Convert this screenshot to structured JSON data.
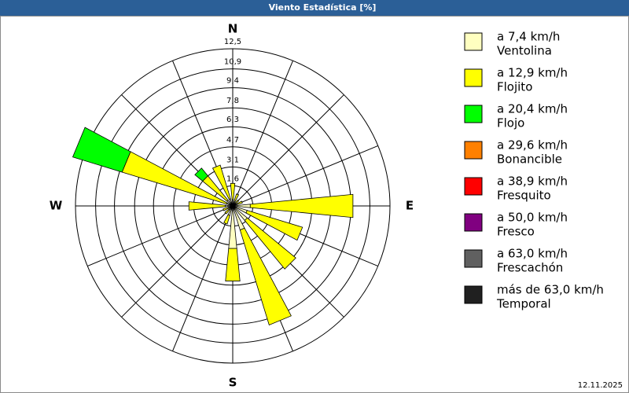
{
  "chart_data": {
    "type": "windrose",
    "title": "Viento Estadística [%]",
    "date": "12.11.2025",
    "categories": [
      "N",
      null,
      null,
      null,
      "E",
      null,
      null,
      null,
      "S",
      null,
      null,
      null,
      "W",
      null,
      null,
      null
    ],
    "rlim": [
      0,
      12.5
    ],
    "rticks": [
      {
        "value": 1.6,
        "label": "1,6"
      },
      {
        "value": 3.1,
        "label": "3,1"
      },
      {
        "value": 4.7,
        "label": "4,7"
      },
      {
        "value": 6.3,
        "label": "6,3"
      },
      {
        "value": 7.8,
        "label": "7,8"
      },
      {
        "value": 9.4,
        "label": "9,4"
      },
      {
        "value": 10.9,
        "label": "10,9"
      },
      {
        "value": 12.5,
        "label": "12,5"
      }
    ],
    "series": [
      {
        "name": "a 7,4 km/h",
        "description": "Ventolina",
        "color": "#ffffc0",
        "values": [
          0.5,
          0.4,
          0.3,
          0.4,
          1.4,
          1.2,
          1.5,
          2.0,
          3.4,
          0.8,
          0.4,
          0.4,
          0.6,
          0.5,
          0.6,
          0.6
        ]
      },
      {
        "name": "a 12,9 km/h",
        "description": "Flojito",
        "color": "#ffff00",
        "values": [
          1.3,
          0.6,
          0.3,
          0.4,
          8.2,
          4.6,
          5.0,
          7.9,
          2.6,
          0.7,
          0.4,
          0.4,
          2.9,
          8.7,
          2.5,
          2.8
        ]
      },
      {
        "name": "a 20,4 km/h",
        "description": "Flojo",
        "color": "#00ff00",
        "values": [
          0,
          0,
          0,
          0,
          0,
          0,
          0,
          0,
          0,
          0,
          0,
          0,
          0,
          4.1,
          0.8,
          0
        ]
      },
      {
        "name": "a 29,6 km/h",
        "description": "Bonancible",
        "color": "#ff8000",
        "values": [
          0,
          0,
          0,
          0,
          0,
          0,
          0,
          0,
          0,
          0,
          0,
          0,
          0,
          0,
          0,
          0
        ]
      },
      {
        "name": "a 38,9 km/h",
        "description": "Fresquito",
        "color": "#ff0000",
        "values": [
          0,
          0,
          0,
          0,
          0,
          0,
          0,
          0,
          0,
          0,
          0,
          0,
          0,
          0,
          0,
          0
        ]
      },
      {
        "name": "a 50,0 km/h",
        "description": "Fresco",
        "color": "#800080",
        "values": [
          0,
          0,
          0,
          0,
          0,
          0,
          0,
          0,
          0,
          0,
          0,
          0,
          0,
          0,
          0,
          0
        ]
      },
      {
        "name": "a 63,0 km/h",
        "description": "Frescachón",
        "color": "#606060",
        "values": [
          0,
          0,
          0,
          0,
          0,
          0,
          0,
          0,
          0,
          0,
          0,
          0,
          0,
          0,
          0,
          0
        ]
      },
      {
        "name": "más de 63,0 km/h",
        "description": "Temporal",
        "color": "#202020",
        "values": [
          0,
          0,
          0,
          0,
          0,
          0,
          0,
          0,
          0,
          0,
          0,
          0,
          0,
          0,
          0,
          0
        ]
      }
    ]
  }
}
